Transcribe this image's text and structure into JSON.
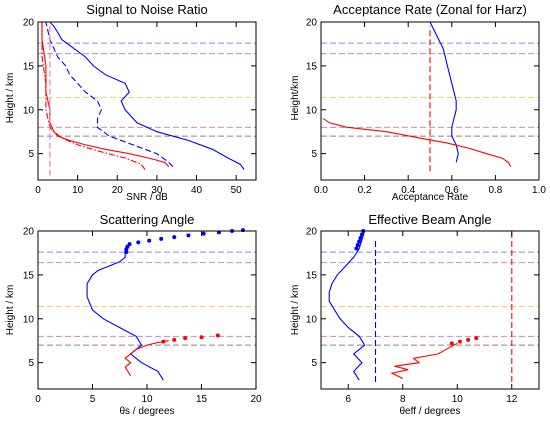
{
  "chart_data": [
    {
      "type": "line",
      "title": "Signal to Noise Ratio",
      "xlabel": "SNR / dB",
      "ylabel": "Height / km",
      "xlim": [
        0,
        55
      ],
      "ylim": [
        2,
        20
      ],
      "xticks": [
        0,
        10,
        20,
        30,
        40,
        50
      ],
      "yticks": [
        5,
        10,
        15,
        20
      ],
      "xtick_labels": [
        "0",
        "10",
        "20",
        "30",
        "40",
        "50"
      ],
      "ytick_labels": [
        "5",
        "10",
        "15",
        "20"
      ],
      "grid": false,
      "series": [
        {
          "color": "#0000ff",
          "dash": "solid",
          "points": [
            [
              52,
              3.2
            ],
            [
              51,
              3.8
            ],
            [
              48,
              4.5
            ],
            [
              44,
              5.5
            ],
            [
              38,
              6.5
            ],
            [
              30,
              7.5
            ],
            [
              25,
              8.5
            ],
            [
              22,
              10.0
            ],
            [
              21,
              11.0
            ],
            [
              23,
              12.0
            ],
            [
              22,
              13.0
            ],
            [
              17,
              14.0
            ],
            [
              14,
              15.0
            ],
            [
              12,
              16.0
            ],
            [
              9,
              17.0
            ],
            [
              6,
              18.0
            ],
            [
              5,
              18.8
            ],
            [
              4,
              19.5
            ],
            [
              3,
              20.0
            ]
          ]
        },
        {
          "color": "#0000ff",
          "dash": "dashed",
          "points": [
            [
              34,
              3.5
            ],
            [
              33,
              4.0
            ],
            [
              30,
              5.0
            ],
            [
              24,
              6.0
            ],
            [
              18,
              7.0
            ],
            [
              15,
              8.0
            ],
            [
              15,
              9.0
            ],
            [
              16,
              10.0
            ],
            [
              15,
              11.0
            ],
            [
              12,
              12.0
            ],
            [
              10,
              13.0
            ],
            [
              8,
              14.0
            ],
            [
              7,
              15.0
            ],
            [
              5,
              16.0
            ],
            [
              3,
              18.0
            ],
            [
              2,
              20.0
            ]
          ]
        },
        {
          "color": "#ff0000",
          "dash": "solid",
          "points": [
            [
              33,
              3.5
            ],
            [
              32,
              4.0
            ],
            [
              28,
              4.5
            ],
            [
              23,
              5.0
            ],
            [
              17,
              5.5
            ],
            [
              12,
              6.0
            ],
            [
              8,
              6.5
            ],
            [
              5,
              7.0
            ],
            [
              4,
              7.5
            ],
            [
              3,
              8.5
            ],
            [
              3,
              10.0
            ],
            [
              2,
              12.0
            ],
            [
              2,
              15.0
            ],
            [
              1,
              18.0
            ],
            [
              1,
              20.0
            ]
          ]
        },
        {
          "color": "#ff0000",
          "dash": "dashdot",
          "points": [
            [
              27,
              3.2
            ],
            [
              26,
              3.8
            ],
            [
              22,
              4.5
            ],
            [
              16,
              5.2
            ],
            [
              10,
              6.0
            ],
            [
              6,
              6.8
            ],
            [
              4,
              7.5
            ],
            [
              3,
              8.0
            ],
            [
              2,
              10.0
            ],
            [
              2,
              13.0
            ],
            [
              1,
              16.0
            ],
            [
              1,
              18.0
            ],
            [
              1,
              20.0
            ]
          ]
        },
        {
          "color": "#ff69b4",
          "dash": "dashed",
          "points": [
            [
              3,
              2.5
            ],
            [
              3,
              20.0
            ]
          ]
        }
      ],
      "hlines": [
        {
          "y": 17.6,
          "color": "#8888ee"
        },
        {
          "y": 16.4,
          "color": "#cc88cc"
        },
        {
          "y": 11.4,
          "color": "#ffcc66"
        },
        {
          "y": 8.0,
          "color": "#cc88cc"
        },
        {
          "y": 7.0,
          "color": "#888888"
        }
      ]
    },
    {
      "type": "line",
      "title": "Acceptance Rate (Zonal for Harz)",
      "xlabel": "Acceptance Rate",
      "ylabel": "Height/km",
      "xlim": [
        0,
        1
      ],
      "ylim": [
        2,
        20
      ],
      "xticks": [
        0,
        0.2,
        0.4,
        0.6,
        0.8,
        1.0
      ],
      "yticks": [
        5,
        10,
        15,
        20
      ],
      "xtick_labels": [
        "0.0",
        "0.2",
        "0.4",
        "0.6",
        "0.8",
        "1.0"
      ],
      "ytick_labels": [
        "5",
        "10",
        "15",
        "20"
      ],
      "grid": false,
      "series": [
        {
          "color": "#0000ff",
          "dash": "solid",
          "points": [
            [
              0.62,
              4.0
            ],
            [
              0.63,
              5.0
            ],
            [
              0.62,
              6.0
            ],
            [
              0.6,
              7.0
            ],
            [
              0.6,
              8.0
            ],
            [
              0.62,
              10.0
            ],
            [
              0.62,
              11.0
            ],
            [
              0.6,
              13.0
            ],
            [
              0.58,
              15.0
            ],
            [
              0.57,
              16.0
            ],
            [
              0.56,
              17.0
            ],
            [
              0.54,
              18.0
            ],
            [
              0.52,
              19.0
            ],
            [
              0.5,
              20.0
            ]
          ]
        },
        {
          "color": "#ff0000",
          "dash": "solid",
          "points": [
            [
              0.87,
              3.5
            ],
            [
              0.86,
              4.0
            ],
            [
              0.83,
              4.5
            ],
            [
              0.76,
              5.0
            ],
            [
              0.68,
              5.6
            ],
            [
              0.58,
              6.2
            ],
            [
              0.45,
              6.8
            ],
            [
              0.3,
              7.5
            ],
            [
              0.12,
              8.0
            ],
            [
              0.04,
              8.5
            ],
            [
              0.01,
              9.0
            ]
          ]
        },
        {
          "color": "#ff0000",
          "dash": "dashed",
          "points": [
            [
              0.5,
              3.0
            ],
            [
              0.5,
              19.5
            ]
          ]
        }
      ],
      "hlines": [
        {
          "y": 17.6,
          "color": "#8888ee"
        },
        {
          "y": 16.4,
          "color": "#cc88cc"
        },
        {
          "y": 11.4,
          "color": "#ffcc66"
        },
        {
          "y": 8.0,
          "color": "#cc88cc"
        },
        {
          "y": 7.0,
          "color": "#888888"
        }
      ]
    },
    {
      "type": "line",
      "title": "Scattering Angle",
      "xlabel": "θs / degrees",
      "ylabel": "Height / km",
      "xlim": [
        0,
        20
      ],
      "ylim": [
        2,
        20
      ],
      "xticks": [
        0,
        5,
        10,
        15,
        20
      ],
      "yticks": [
        5,
        10,
        15,
        20
      ],
      "xtick_labels": [
        "0",
        "5",
        "10",
        "15",
        "20"
      ],
      "ytick_labels": [
        "5",
        "10",
        "15",
        "20"
      ],
      "grid": false,
      "series": [
        {
          "color": "#0000ff",
          "dash": "solid",
          "points": [
            [
              11.5,
              3.0
            ],
            [
              11.0,
              4.0
            ],
            [
              9.5,
              5.0
            ],
            [
              8.5,
              6.0
            ],
            [
              9.5,
              7.0
            ],
            [
              9.0,
              8.0
            ],
            [
              7.5,
              9.0
            ],
            [
              6.0,
              10.0
            ],
            [
              5.0,
              11.0
            ],
            [
              4.5,
              12.5
            ],
            [
              4.5,
              14.0
            ],
            [
              5.0,
              15.0
            ],
            [
              5.5,
              15.5
            ],
            [
              6.5,
              16.0
            ],
            [
              7.5,
              16.5
            ],
            [
              8.0,
              17.0
            ],
            [
              8.0,
              17.5
            ]
          ]
        },
        {
          "color": "#ff0000",
          "dash": "solid",
          "points": [
            [
              8.5,
              3.5
            ],
            [
              8.0,
              4.5
            ],
            [
              8.5,
              5.0
            ],
            [
              8.0,
              5.5
            ],
            [
              8.5,
              6.0
            ],
            [
              9.0,
              6.5
            ],
            [
              10.0,
              7.0
            ],
            [
              11.0,
              7.3
            ],
            [
              12.0,
              7.5
            ]
          ]
        },
        {
          "color": "#0000ff",
          "dash": "dots",
          "points": [
            [
              8.1,
              17.6
            ],
            [
              8.1,
              17.9
            ],
            [
              8.2,
              18.2
            ],
            [
              8.4,
              18.5
            ],
            [
              9.2,
              18.7
            ],
            [
              10.2,
              18.9
            ],
            [
              11.3,
              19.1
            ],
            [
              12.5,
              19.3
            ],
            [
              13.8,
              19.5
            ],
            [
              15.2,
              19.7
            ],
            [
              16.6,
              19.85
            ],
            [
              17.8,
              20.0
            ],
            [
              18.8,
              20.1
            ]
          ]
        },
        {
          "color": "#ff0000",
          "dash": "dots",
          "points": [
            [
              11.5,
              7.4
            ],
            [
              12.5,
              7.6
            ],
            [
              13.5,
              7.8
            ],
            [
              15.0,
              7.9
            ],
            [
              16.5,
              8.1
            ]
          ]
        }
      ],
      "hlines": [
        {
          "y": 17.6,
          "color": "#8888ee"
        },
        {
          "y": 16.4,
          "color": "#cc88cc"
        },
        {
          "y": 11.4,
          "color": "#ffcc66"
        },
        {
          "y": 8.0,
          "color": "#cc88cc"
        },
        {
          "y": 7.0,
          "color": "#888888"
        }
      ]
    },
    {
      "type": "line",
      "title": "Effective Beam Angle",
      "xlabel": "θeff / degrees",
      "ylabel": "Height / km",
      "xlim": [
        5,
        13
      ],
      "ylim": [
        2,
        20
      ],
      "xticks": [
        6,
        8,
        10,
        12
      ],
      "yticks": [
        5,
        10,
        15,
        20
      ],
      "xtick_labels": [
        "6",
        "8",
        "10",
        "12"
      ],
      "ytick_labels": [
        "5",
        "10",
        "15",
        "20"
      ],
      "grid": false,
      "series": [
        {
          "color": "#0000ff",
          "dash": "solid",
          "points": [
            [
              6.4,
              3.0
            ],
            [
              6.2,
              4.0
            ],
            [
              6.5,
              5.0
            ],
            [
              6.2,
              6.0
            ],
            [
              6.6,
              7.0
            ],
            [
              6.4,
              8.0
            ],
            [
              6.0,
              9.0
            ],
            [
              5.7,
              10.0
            ],
            [
              5.5,
              11.0
            ],
            [
              5.3,
              12.0
            ],
            [
              5.3,
              13.0
            ],
            [
              5.4,
              14.0
            ],
            [
              5.6,
              15.0
            ],
            [
              5.9,
              16.0
            ],
            [
              6.2,
              17.0
            ],
            [
              6.4,
              18.0
            ],
            [
              6.5,
              19.0
            ],
            [
              6.6,
              20.0
            ]
          ]
        },
        {
          "color": "#ff0000",
          "dash": "solid",
          "points": [
            [
              8.0,
              3.2
            ],
            [
              7.6,
              3.8
            ],
            [
              8.2,
              4.2
            ],
            [
              7.7,
              4.6
            ],
            [
              8.6,
              5.0
            ],
            [
              8.4,
              5.5
            ],
            [
              9.3,
              6.0
            ],
            [
              9.7,
              6.7
            ],
            [
              10.0,
              7.2
            ]
          ]
        },
        {
          "color": "#0000ff",
          "dash": "dashed",
          "points": [
            [
              7.0,
              2.8
            ],
            [
              7.0,
              19.0
            ]
          ]
        },
        {
          "color": "#ff0000",
          "dash": "dashed",
          "points": [
            [
              12.0,
              2.8
            ],
            [
              12.0,
              20.0
            ]
          ]
        },
        {
          "color": "#0000ff",
          "dash": "dots",
          "points": [
            [
              6.3,
              18.0
            ],
            [
              6.35,
              18.4
            ],
            [
              6.4,
              18.8
            ],
            [
              6.45,
              19.2
            ],
            [
              6.5,
              19.6
            ],
            [
              6.55,
              20.0
            ]
          ]
        },
        {
          "color": "#ff0000",
          "dash": "dots",
          "points": [
            [
              9.8,
              7.2
            ],
            [
              10.1,
              7.4
            ],
            [
              10.4,
              7.6
            ],
            [
              10.7,
              7.8
            ]
          ]
        }
      ],
      "hlines": [
        {
          "y": 17.6,
          "color": "#8888ee"
        },
        {
          "y": 16.4,
          "color": "#cc88cc"
        },
        {
          "y": 11.4,
          "color": "#ffcc66"
        },
        {
          "y": 8.0,
          "color": "#cc88cc"
        },
        {
          "y": 7.0,
          "color": "#888888"
        }
      ]
    }
  ]
}
